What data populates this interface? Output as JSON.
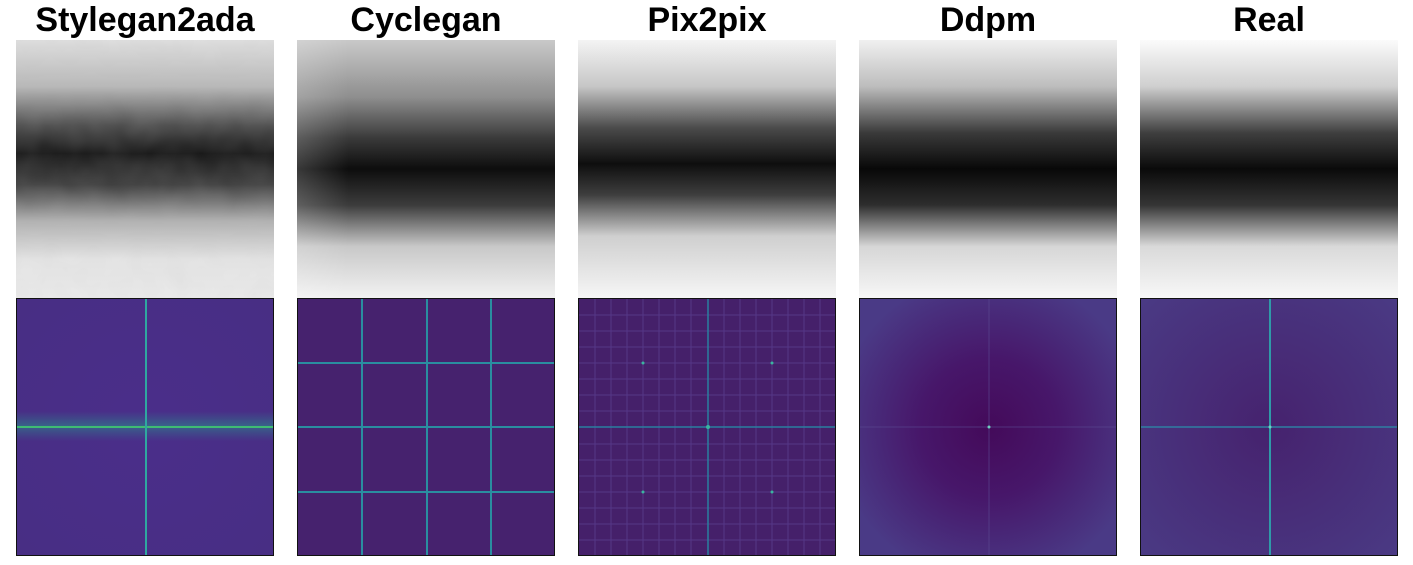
{
  "columns": [
    {
      "title": "Stylegan2ada"
    },
    {
      "title": "Cyclegan"
    },
    {
      "title": "Pix2pix"
    },
    {
      "title": "Ddpm"
    },
    {
      "title": "Real"
    }
  ]
}
